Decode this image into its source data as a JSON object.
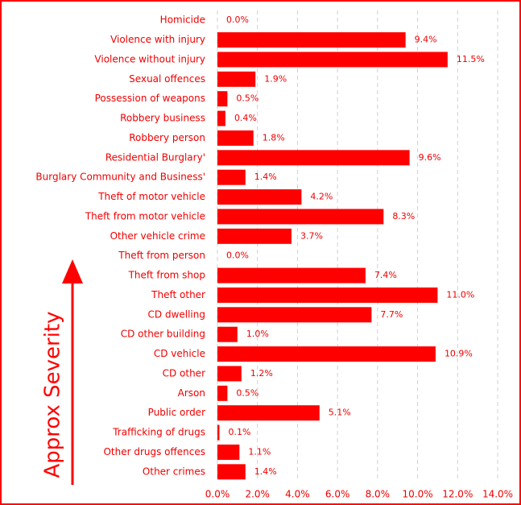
{
  "chart_data": {
    "type": "bar",
    "orientation": "horizontal",
    "color": "#ff0000",
    "categories": [
      "Homicide",
      "Violence with injury",
      "Violence without injury",
      "Sexual offences",
      "Possession of weapons",
      "Robbery business",
      "Robbery person",
      "Residential Burglary'",
      "Burglary Community and Business'",
      "Theft of motor vehicle",
      "Theft from motor vehicle",
      "Other vehicle crime",
      "Theft from person",
      "Theft from shop",
      "Theft other",
      "CD dwelling",
      "CD other building",
      "CD vehicle",
      "CD other",
      "Arson",
      "Public order",
      "Trafficking of drugs",
      "Other drugs offences",
      "Other crimes"
    ],
    "values": [
      0.0,
      9.4,
      11.5,
      1.9,
      0.5,
      0.4,
      1.8,
      9.6,
      1.4,
      4.2,
      8.3,
      3.7,
      0.0,
      7.4,
      11.0,
      7.7,
      1.0,
      10.9,
      1.2,
      0.5,
      5.1,
      0.1,
      1.1,
      1.4
    ],
    "value_labels": [
      "0.0%",
      "9.4%",
      "11.5%",
      "1.9%",
      "0.5%",
      "0.4%",
      "1.8%",
      "9.6%",
      "1.4%",
      "4.2%",
      "8.3%",
      "3.7%",
      "0.0%",
      "7.4%",
      "11.0%",
      "7.7%",
      "1.0%",
      "10.9%",
      "1.2%",
      "0.5%",
      "5.1%",
      "0.1%",
      "1.1%",
      "1.4%"
    ],
    "xlim": [
      0,
      14
    ],
    "xticks": [
      {
        "value": 0,
        "label": "0.0%"
      },
      {
        "value": 2,
        "label": "2.0%"
      },
      {
        "value": 4,
        "label": "4.0%"
      },
      {
        "value": 6,
        "label": "6.0%"
      },
      {
        "value": 8,
        "label": "8.0%"
      },
      {
        "value": 10,
        "label": "10.0%"
      },
      {
        "value": 12,
        "label": "12.0%"
      },
      {
        "value": 14,
        "label": "14.0%"
      }
    ],
    "grid": true,
    "annotation": "Approx Severity"
  }
}
